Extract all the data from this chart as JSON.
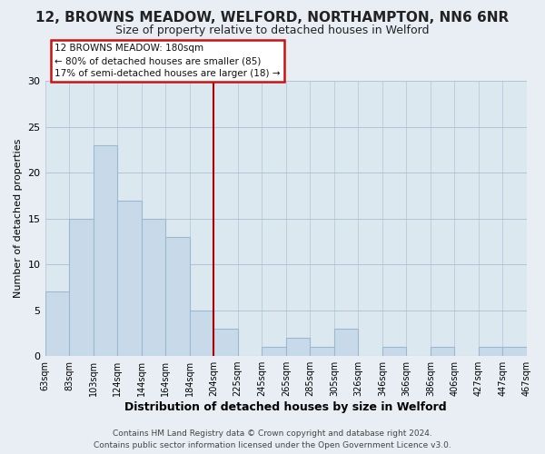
{
  "title1": "12, BROWNS MEADOW, WELFORD, NORTHAMPTON, NN6 6NR",
  "title2": "Size of property relative to detached houses in Welford",
  "xlabel": "Distribution of detached houses by size in Welford",
  "ylabel": "Number of detached properties",
  "bar_labels": [
    "63sqm",
    "83sqm",
    "103sqm",
    "124sqm",
    "144sqm",
    "164sqm",
    "184sqm",
    "204sqm",
    "225sqm",
    "245sqm",
    "265sqm",
    "285sqm",
    "305sqm",
    "326sqm",
    "346sqm",
    "366sqm",
    "386sqm",
    "406sqm",
    "427sqm",
    "447sqm",
    "467sqm"
  ],
  "bar_values": [
    7,
    15,
    23,
    17,
    15,
    13,
    5,
    3,
    0,
    1,
    2,
    1,
    3,
    0,
    1,
    0,
    1,
    0,
    1,
    1
  ],
  "bar_color": "#c8daea",
  "bar_edge_color": "#9ab8d0",
  "vline_x_index": 6,
  "vline_color": "#aa0000",
  "ylim": [
    0,
    30
  ],
  "yticks": [
    0,
    5,
    10,
    15,
    20,
    25,
    30
  ],
  "annotation_line1": "12 BROWNS MEADOW: 180sqm",
  "annotation_line2": "← 80% of detached houses are smaller (85)",
  "annotation_line3": "17% of semi-detached houses are larger (18) →",
  "ann_box_edge_color": "#cc1111",
  "footer_text": "Contains HM Land Registry data © Crown copyright and database right 2024.\nContains public sector information licensed under the Open Government Licence v3.0.",
  "background_color": "#e8eef4",
  "plot_background_color": "#dce8f0",
  "grid_color": "#b0c4d4",
  "title1_fontsize": 11,
  "title2_fontsize": 9,
  "xlabel_fontsize": 9,
  "ylabel_fontsize": 8
}
